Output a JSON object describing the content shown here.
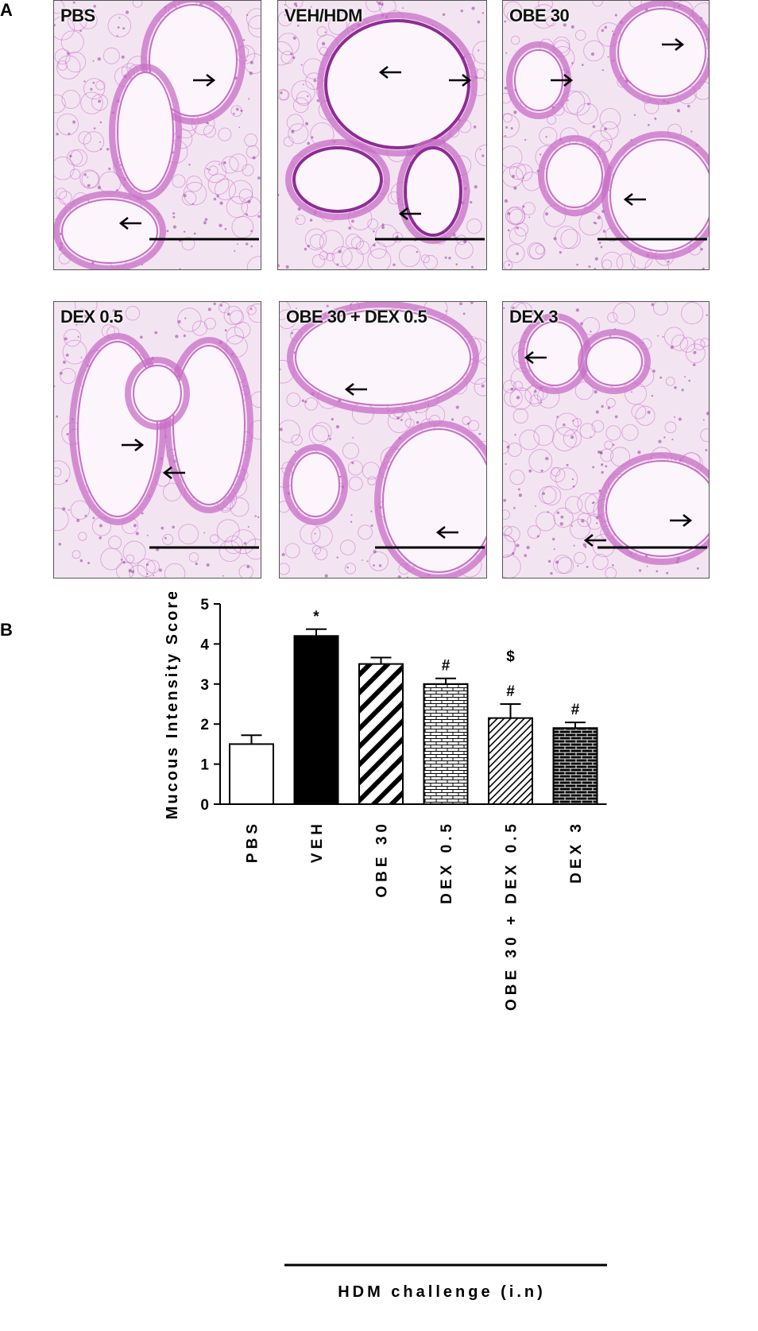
{
  "figure": {
    "panel_a_letter": "A",
    "panel_b_letter": "B"
  },
  "micrographs": [
    {
      "label": "PBS"
    },
    {
      "label": "VEH/HDM"
    },
    {
      "label": "OBE 30"
    },
    {
      "label": "DEX 0.5"
    },
    {
      "label": "OBE 30 + DEX 0.5"
    },
    {
      "label": "DEX 3"
    }
  ],
  "colors": {
    "tissue_bg": "#f3e4f2",
    "tissue_stain": "#c86fc6",
    "tissue_dark": "#8e2c95",
    "bar_fill_dark": "#000000",
    "scale_bar": "#000000"
  },
  "chart_data": {
    "type": "bar",
    "ylabel": "Mucous Intensity Score",
    "xlabel": "HDM challenge (i.n)",
    "ylim": [
      0,
      5
    ],
    "yticks": [
      0,
      1,
      2,
      3,
      4,
      5
    ],
    "categories": [
      "PBS",
      "VEH",
      "OBE 30",
      "DEX 0.5",
      "OBE 30 + DEX 0.5",
      "DEX 3"
    ],
    "values": [
      1.5,
      4.2,
      3.5,
      3.0,
      2.15,
      1.9
    ],
    "errors": [
      0.22,
      0.17,
      0.16,
      0.14,
      0.35,
      0.14
    ],
    "fills": [
      "open",
      "solid",
      "wide-diagonal",
      "horizontal-brick",
      "narrow-diagonal",
      "dark-brick"
    ],
    "annotations": [
      "",
      "*",
      "",
      "#",
      "$\n#",
      "#"
    ],
    "bracket_start_category": "VEH",
    "bracket_end_category": "DEX 3"
  }
}
